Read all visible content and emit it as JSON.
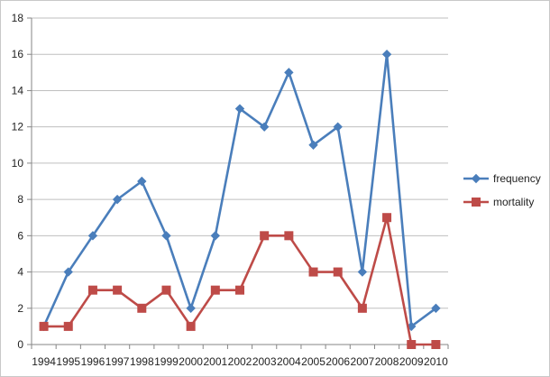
{
  "chart_data": {
    "type": "line",
    "title": "",
    "xlabel": "",
    "ylabel": "",
    "categories": [
      "1994",
      "1995",
      "1996",
      "1997",
      "1998",
      "1999",
      "2000",
      "2001",
      "2002",
      "2003",
      "2004",
      "2005",
      "2006",
      "2007",
      "2008",
      "2009",
      "2010"
    ],
    "ylim": [
      0,
      18
    ],
    "yticks": [
      0,
      2,
      4,
      6,
      8,
      10,
      12,
      14,
      16,
      18
    ],
    "grid": true,
    "legend_position": "right",
    "series": [
      {
        "name": "frequency",
        "color": "#4a7ebb",
        "marker": "diamond",
        "values": [
          1,
          4,
          6,
          8,
          9,
          6,
          2,
          6,
          13,
          12,
          15,
          11,
          12,
          4,
          16,
          1,
          2
        ]
      },
      {
        "name": "mortality",
        "color": "#be4b48",
        "marker": "square",
        "values": [
          1,
          1,
          3,
          3,
          2,
          3,
          1,
          3,
          3,
          6,
          6,
          4,
          4,
          2,
          7,
          0,
          0
        ]
      }
    ]
  }
}
